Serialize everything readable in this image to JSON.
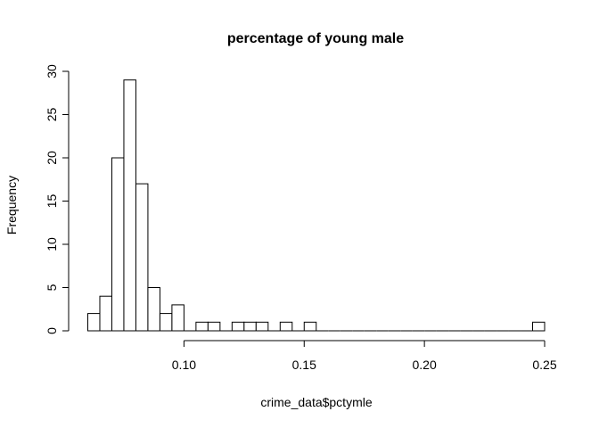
{
  "chart_data": {
    "type": "bar",
    "title": "percentage of young male",
    "xlabel": "crime_data$pctymle",
    "ylabel": "Frequency",
    "bin_width": 0.005,
    "bins": [
      {
        "x0": 0.06,
        "x1": 0.065,
        "count": 2
      },
      {
        "x0": 0.065,
        "x1": 0.07,
        "count": 4
      },
      {
        "x0": 0.07,
        "x1": 0.075,
        "count": 20
      },
      {
        "x0": 0.075,
        "x1": 0.08,
        "count": 29
      },
      {
        "x0": 0.08,
        "x1": 0.085,
        "count": 17
      },
      {
        "x0": 0.085,
        "x1": 0.09,
        "count": 5
      },
      {
        "x0": 0.09,
        "x1": 0.095,
        "count": 2
      },
      {
        "x0": 0.095,
        "x1": 0.1,
        "count": 3
      },
      {
        "x0": 0.1,
        "x1": 0.105,
        "count": 0
      },
      {
        "x0": 0.105,
        "x1": 0.11,
        "count": 1
      },
      {
        "x0": 0.11,
        "x1": 0.115,
        "count": 1
      },
      {
        "x0": 0.115,
        "x1": 0.12,
        "count": 0
      },
      {
        "x0": 0.12,
        "x1": 0.125,
        "count": 1
      },
      {
        "x0": 0.125,
        "x1": 0.13,
        "count": 1
      },
      {
        "x0": 0.13,
        "x1": 0.135,
        "count": 1
      },
      {
        "x0": 0.135,
        "x1": 0.14,
        "count": 0
      },
      {
        "x0": 0.14,
        "x1": 0.145,
        "count": 1
      },
      {
        "x0": 0.145,
        "x1": 0.15,
        "count": 0
      },
      {
        "x0": 0.15,
        "x1": 0.155,
        "count": 1
      },
      {
        "x0": 0.155,
        "x1": 0.16,
        "count": 0
      },
      {
        "x0": 0.16,
        "x1": 0.165,
        "count": 0
      },
      {
        "x0": 0.165,
        "x1": 0.17,
        "count": 0
      },
      {
        "x0": 0.17,
        "x1": 0.175,
        "count": 0
      },
      {
        "x0": 0.175,
        "x1": 0.18,
        "count": 0
      },
      {
        "x0": 0.18,
        "x1": 0.185,
        "count": 0
      },
      {
        "x0": 0.185,
        "x1": 0.19,
        "count": 0
      },
      {
        "x0": 0.19,
        "x1": 0.195,
        "count": 0
      },
      {
        "x0": 0.195,
        "x1": 0.2,
        "count": 0
      },
      {
        "x0": 0.2,
        "x1": 0.205,
        "count": 0
      },
      {
        "x0": 0.205,
        "x1": 0.21,
        "count": 0
      },
      {
        "x0": 0.21,
        "x1": 0.215,
        "count": 0
      },
      {
        "x0": 0.215,
        "x1": 0.22,
        "count": 0
      },
      {
        "x0": 0.22,
        "x1": 0.225,
        "count": 0
      },
      {
        "x0": 0.225,
        "x1": 0.23,
        "count": 0
      },
      {
        "x0": 0.23,
        "x1": 0.235,
        "count": 0
      },
      {
        "x0": 0.235,
        "x1": 0.24,
        "count": 0
      },
      {
        "x0": 0.24,
        "x1": 0.245,
        "count": 0
      },
      {
        "x0": 0.245,
        "x1": 0.25,
        "count": 1
      }
    ],
    "xlim": [
      0.06,
      0.25
    ],
    "ylim": [
      0,
      30
    ],
    "x_axis_range": [
      0.1,
      0.25
    ],
    "x_ticks": [
      0.1,
      0.15,
      0.2,
      0.25
    ],
    "x_tick_labels": [
      "0.10",
      "0.15",
      "0.20",
      "0.25"
    ],
    "y_ticks": [
      0,
      5,
      10,
      15,
      20,
      25,
      30
    ],
    "y_tick_labels": [
      "0",
      "5",
      "10",
      "15",
      "20",
      "25",
      "30"
    ],
    "grid": false,
    "bar_fill": "#ffffff",
    "bar_stroke": "#000000"
  }
}
